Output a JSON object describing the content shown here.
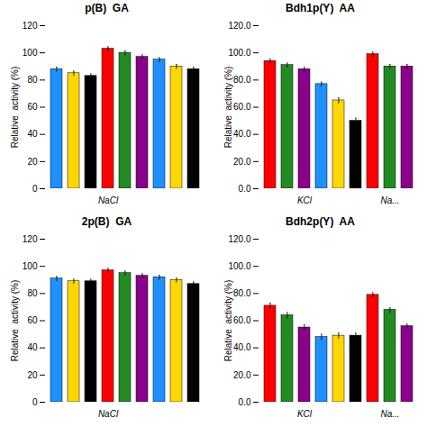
{
  "chart_data": [
    {
      "type": "bar",
      "title": "p(B)  GA",
      "ylabel": "Relative  activity (%)",
      "categories": [
        null,
        null,
        null,
        "NaCl",
        null,
        null,
        null,
        null,
        null
      ],
      "values": [
        88,
        85,
        83,
        103,
        100,
        97,
        95,
        90,
        88
      ],
      "errors": [
        1.5,
        1.5,
        1.5,
        1.5,
        1.5,
        1.5,
        1.5,
        1.5,
        1.5
      ],
      "colors": [
        "#1E90FF",
        "#FFD700",
        "#000000",
        "#FF0000",
        "#228B22",
        "#8B008B",
        "#1E90FF",
        "#FFD700",
        "#000000"
      ],
      "ylim": [
        0,
        120
      ],
      "yticks": [
        0,
        20,
        40,
        60,
        80,
        100,
        120
      ]
    },
    {
      "type": "bar",
      "title": "Bdh1p(Y)  AA",
      "ylabel": "Relative  activity (%)",
      "categories": [
        null,
        null,
        "KCl",
        null,
        null,
        null,
        null,
        "Na...",
        null
      ],
      "values": [
        94,
        91,
        88,
        77,
        65,
        50,
        99,
        90,
        90
      ],
      "errors": [
        1.5,
        1.5,
        1.5,
        1.5,
        2.0,
        2.0,
        1.5,
        1.5,
        1.5
      ],
      "colors": [
        "#FF0000",
        "#228B22",
        "#8B008B",
        "#1E90FF",
        "#FFD700",
        "#000000",
        "#FF0000",
        "#228B22",
        "#8B008B"
      ],
      "ylim": [
        0,
        120
      ],
      "yticks": [
        {
          "value": 0,
          "label": "0.0"
        },
        {
          "value": 20,
          "label": "20.0"
        },
        {
          "value": 40,
          "label": "40.0"
        },
        {
          "value": 60,
          "label": "60.0"
        },
        {
          "value": 80,
          "label": "80.0"
        },
        {
          "value": 100,
          "label": "100.0"
        },
        {
          "value": 120,
          "label": "120.0"
        }
      ]
    },
    {
      "type": "bar",
      "title": "2p(B)  GA",
      "ylabel": "Relative  activity (%)",
      "categories": [
        null,
        null,
        null,
        "NaCl",
        null,
        null,
        null,
        null,
        null
      ],
      "values": [
        91,
        89,
        89,
        97,
        95,
        93,
        92,
        90,
        87
      ],
      "errors": [
        1.5,
        1.5,
        1.5,
        1.5,
        1.5,
        1.5,
        1.5,
        1.5,
        1.5
      ],
      "colors": [
        "#1E90FF",
        "#FFD700",
        "#000000",
        "#FF0000",
        "#228B22",
        "#8B008B",
        "#1E90FF",
        "#FFD700",
        "#000000"
      ],
      "ylim": [
        0,
        120
      ],
      "yticks": [
        0,
        20,
        40,
        60,
        80,
        100,
        120
      ]
    },
    {
      "type": "bar",
      "title": "Bdh2p(Y)  AA",
      "ylabel": "Relative  activity (%)",
      "categories": [
        null,
        null,
        "KCl",
        null,
        null,
        null,
        null,
        "Na...",
        null
      ],
      "values": [
        71,
        64,
        55,
        48,
        49,
        49,
        79,
        68,
        56
      ],
      "errors": [
        2.0,
        2.0,
        2.0,
        2.0,
        2.0,
        2.0,
        1.5,
        1.5,
        1.5
      ],
      "colors": [
        "#FF0000",
        "#228B22",
        "#8B008B",
        "#1E90FF",
        "#FFD700",
        "#000000",
        "#FF0000",
        "#228B22",
        "#8B008B"
      ],
      "ylim": [
        0,
        120
      ],
      "yticks": [
        {
          "value": 0,
          "label": "0.0"
        },
        {
          "value": 20,
          "label": "20.0"
        },
        {
          "value": 40,
          "label": "40.0"
        },
        {
          "value": 60,
          "label": "60.0"
        },
        {
          "value": 80,
          "label": "80.0"
        },
        {
          "value": 100,
          "label": "100.0"
        },
        {
          "value": 120,
          "label": "120.0"
        }
      ]
    }
  ]
}
